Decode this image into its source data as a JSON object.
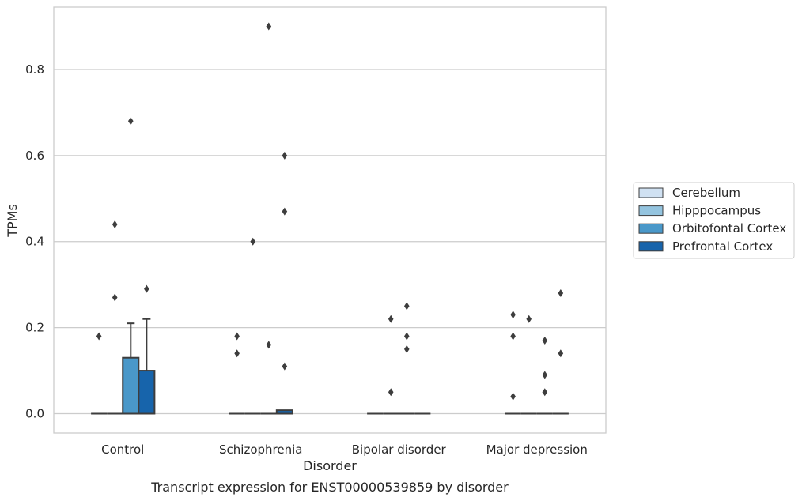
{
  "chart_data": {
    "type": "box",
    "caption": "Transcript expression for ENST00000539859 by disorder",
    "xlabel": "Disorder",
    "ylabel": "TPMs",
    "ylim": [
      -0.045,
      0.945
    ],
    "yticks": [
      0.0,
      0.2,
      0.4,
      0.6,
      0.8
    ],
    "ytick_labels": [
      "0.0",
      "0.2",
      "0.4",
      "0.6",
      "0.8"
    ],
    "grid": true,
    "legend_position": "right",
    "categories": [
      "Control",
      "Schizophrenia",
      "Bipolar disorder",
      "Major depression"
    ],
    "series": [
      {
        "name": "Cerebellum",
        "color": "#d0e1f2",
        "boxes": [
          {
            "q1": 0,
            "median": 0,
            "q3": 0,
            "whisker_low": 0,
            "whisker_high": 0,
            "outliers": [
              0.18
            ]
          },
          {
            "q1": 0,
            "median": 0,
            "q3": 0,
            "whisker_low": 0,
            "whisker_high": 0,
            "outliers": [
              0.18,
              0.14
            ]
          },
          {
            "q1": 0,
            "median": 0,
            "q3": 0,
            "whisker_low": 0,
            "whisker_high": 0,
            "outliers": []
          },
          {
            "q1": 0,
            "median": 0,
            "q3": 0,
            "whisker_low": 0,
            "whisker_high": 0,
            "outliers": [
              0.23,
              0.18,
              0.04
            ]
          }
        ]
      },
      {
        "name": "Hipppocampus",
        "color": "#94c4df",
        "boxes": [
          {
            "q1": 0,
            "median": 0,
            "q3": 0,
            "whisker_low": 0,
            "whisker_high": 0,
            "outliers": [
              0.44,
              0.27
            ]
          },
          {
            "q1": 0,
            "median": 0,
            "q3": 0,
            "whisker_low": 0,
            "whisker_high": 0,
            "outliers": [
              0.4
            ]
          },
          {
            "q1": 0,
            "median": 0,
            "q3": 0,
            "whisker_low": 0,
            "whisker_high": 0,
            "outliers": [
              0.22,
              0.05
            ]
          },
          {
            "q1": 0,
            "median": 0,
            "q3": 0,
            "whisker_low": 0,
            "whisker_high": 0,
            "outliers": [
              0.22
            ]
          }
        ]
      },
      {
        "name": "Orbitofontal Cortex",
        "color": "#4a98c9",
        "boxes": [
          {
            "q1": 0,
            "median": 0,
            "q3": 0.13,
            "whisker_low": 0,
            "whisker_high": 0.21,
            "outliers": [
              0.68
            ]
          },
          {
            "q1": 0,
            "median": 0,
            "q3": 0,
            "whisker_low": 0,
            "whisker_high": 0,
            "outliers": [
              0.9,
              0.16
            ]
          },
          {
            "q1": 0,
            "median": 0,
            "q3": 0,
            "whisker_low": 0,
            "whisker_high": 0,
            "outliers": [
              0.25,
              0.18,
              0.15
            ]
          },
          {
            "q1": 0,
            "median": 0,
            "q3": 0,
            "whisker_low": 0,
            "whisker_high": 0,
            "outliers": [
              0.17,
              0.09,
              0.05
            ]
          }
        ]
      },
      {
        "name": "Prefrontal Cortex",
        "color": "#1764ab",
        "boxes": [
          {
            "q1": 0,
            "median": 0,
            "q3": 0.1,
            "whisker_low": 0,
            "whisker_high": 0.22,
            "outliers": [
              0.29
            ]
          },
          {
            "q1": 0,
            "median": 0,
            "q3": 0.008,
            "whisker_low": 0,
            "whisker_high": 0.008,
            "outliers": [
              0.6,
              0.47,
              0.11
            ]
          },
          {
            "q1": 0,
            "median": 0,
            "q3": 0,
            "whisker_low": 0,
            "whisker_high": 0,
            "outliers": []
          },
          {
            "q1": 0,
            "median": 0,
            "q3": 0,
            "whisker_low": 0,
            "whisker_high": 0,
            "outliers": [
              0.28,
              0.14
            ]
          }
        ]
      }
    ]
  }
}
